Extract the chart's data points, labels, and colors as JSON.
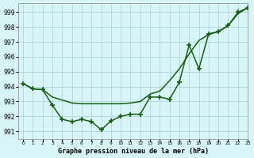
{
  "title": "Graphe pression niveau de la mer (hPa)",
  "background_color": "#d8f5f5",
  "grid_color": "#b0d8d8",
  "line_color": "#1a5c1a",
  "xlim": [
    -0.5,
    23
  ],
  "ylim": [
    990.5,
    999.6
  ],
  "yticks": [
    991,
    992,
    993,
    994,
    995,
    996,
    997,
    998,
    999
  ],
  "xtick_labels": [
    "0",
    "1",
    "2",
    "3",
    "4",
    "5",
    "6",
    "7",
    "8",
    "9",
    "10",
    "11",
    "12",
    "13",
    "14",
    "15",
    "16",
    "17",
    "18",
    "19",
    "20",
    "21",
    "22",
    "23"
  ],
  "line1_x": [
    0,
    1,
    2,
    3,
    4,
    5,
    6,
    7,
    8,
    9,
    10,
    11,
    12,
    13,
    14,
    15,
    16,
    17,
    18,
    19,
    20,
    21,
    22,
    23
  ],
  "line1_y": [
    994.2,
    993.85,
    993.8,
    993.3,
    993.1,
    992.9,
    992.85,
    992.85,
    992.85,
    992.85,
    992.85,
    992.9,
    993.0,
    993.5,
    993.7,
    994.4,
    995.2,
    996.2,
    997.1,
    997.5,
    997.7,
    998.1,
    998.9,
    999.3
  ],
  "line2_x": [
    0,
    1,
    2,
    3,
    4,
    5,
    6,
    7,
    8,
    9,
    10,
    11,
    12,
    13,
    14,
    15,
    16,
    17,
    18,
    19,
    20,
    21,
    22,
    23
  ],
  "line2_y": [
    994.2,
    993.85,
    993.8,
    992.75,
    991.8,
    991.65,
    991.8,
    991.65,
    991.1,
    991.7,
    992.0,
    992.15,
    992.15,
    993.3,
    993.3,
    993.15,
    994.3,
    996.8,
    995.2,
    997.55,
    997.7,
    998.1,
    999.0,
    999.3
  ]
}
